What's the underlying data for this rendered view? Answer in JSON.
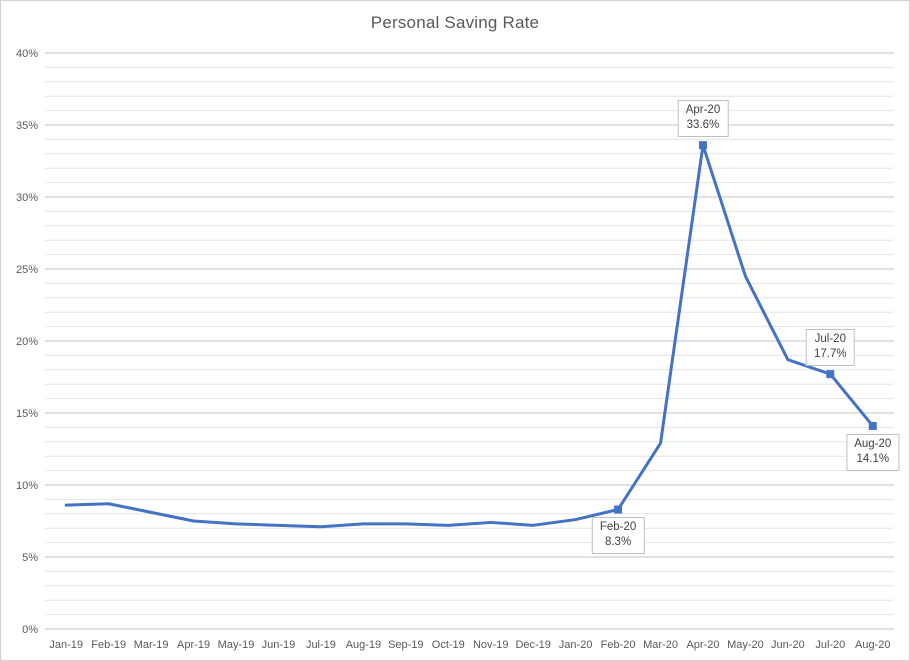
{
  "chart": {
    "colors": {
      "line": "#4472C4",
      "marker": "#4472C4",
      "major_gridline": "#c3c3c3",
      "minor_gridline": "#e4e4e4",
      "axis_text": "#595959",
      "title_text": "#595959",
      "callout_border": "#bfbfbf",
      "callout_text": "#404040",
      "chart_border": "#d0d0d0",
      "background": "#ffffff"
    }
  },
  "chart_data": {
    "type": "line",
    "title": "Personal Saving Rate",
    "xlabel": "",
    "ylabel": "",
    "categories": [
      "Jan-19",
      "Feb-19",
      "Mar-19",
      "Apr-19",
      "May-19",
      "Jun-19",
      "Jul-19",
      "Aug-19",
      "Sep-19",
      "Oct-19",
      "Nov-19",
      "Dec-19",
      "Jan-20",
      "Feb-20",
      "Mar-20",
      "Apr-20",
      "May-20",
      "Jun-20",
      "Jul-20",
      "Aug-20"
    ],
    "series": [
      {
        "name": "Personal Saving Rate",
        "values": [
          8.6,
          8.7,
          8.1,
          7.5,
          7.3,
          7.2,
          7.1,
          7.3,
          7.3,
          7.2,
          7.4,
          7.2,
          7.6,
          8.3,
          12.9,
          33.6,
          24.5,
          18.7,
          17.7,
          14.1
        ]
      }
    ],
    "ylim": [
      0,
      40
    ],
    "y_major_step": 5,
    "y_minor_step": 1,
    "y_tick_labels": [
      "0%",
      "5%",
      "10%",
      "15%",
      "20%",
      "25%",
      "30%",
      "35%",
      "40%"
    ],
    "grid": "horizontal major+minor, no vertical",
    "legend": "none",
    "data_labels": [
      {
        "category": "Feb-20",
        "date_text": "Feb-20",
        "value_text": "8.3%",
        "value": 8.3,
        "position": "below"
      },
      {
        "category": "Apr-20",
        "date_text": "Apr-20",
        "value_text": "33.6%",
        "value": 33.6,
        "position": "above"
      },
      {
        "category": "Jul-20",
        "date_text": "Jul-20",
        "value_text": "17.7%",
        "value": 17.7,
        "position": "above"
      },
      {
        "category": "Aug-20",
        "date_text": "Aug-20",
        "value_text": "14.1%",
        "value": 14.1,
        "position": "below"
      }
    ]
  }
}
